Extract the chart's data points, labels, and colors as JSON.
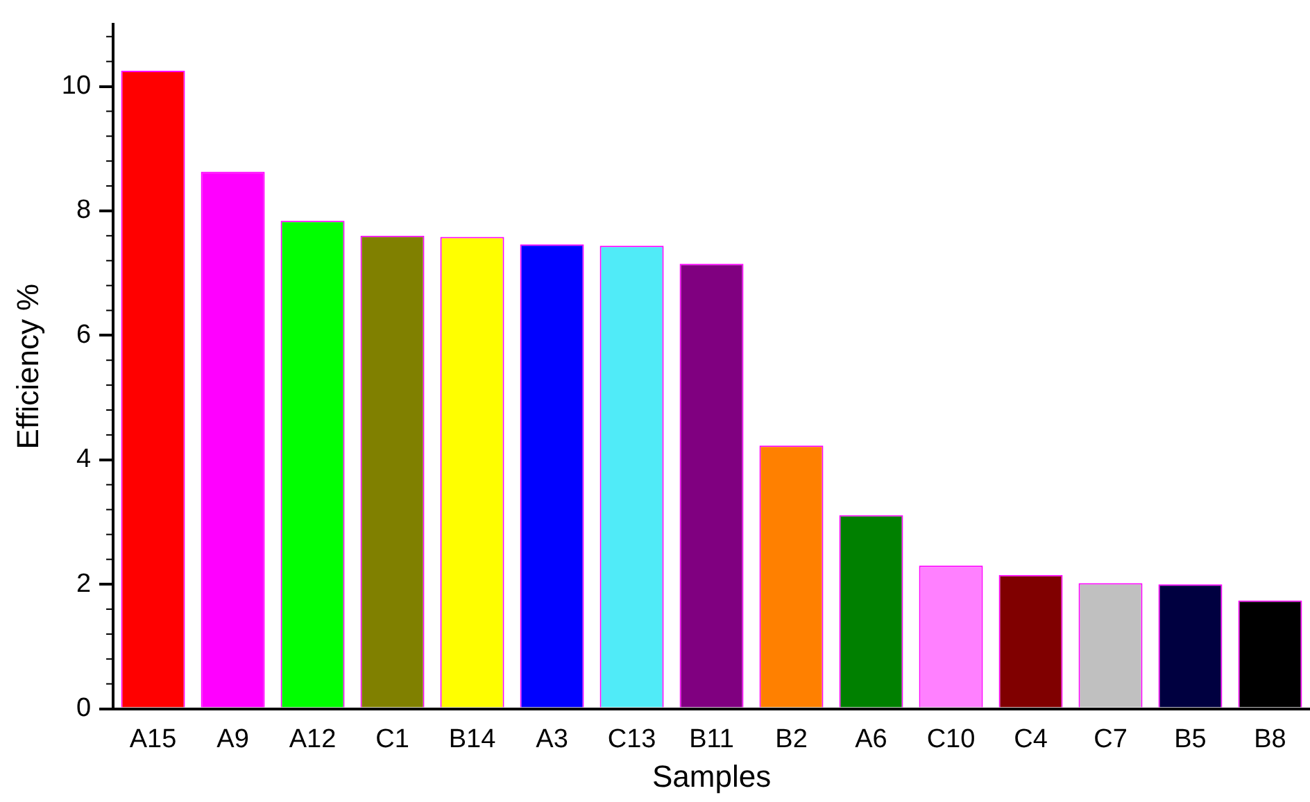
{
  "chart_data": {
    "type": "bar",
    "xlabel": "Samples",
    "ylabel": "Efficiency %",
    "categories": [
      "A15",
      "A9",
      "A12",
      "C1",
      "B14",
      "A3",
      "C13",
      "B11",
      "B2",
      "A6",
      "C10",
      "C4",
      "C7",
      "B5",
      "B8"
    ],
    "values": [
      10.25,
      8.63,
      7.84,
      7.6,
      7.58,
      7.46,
      7.44,
      7.15,
      4.23,
      3.11,
      2.3,
      2.15,
      2.02,
      2.0,
      1.74
    ],
    "colors": [
      "#ff0000",
      "#ff00ff",
      "#00ff00",
      "#808000",
      "#ffff00",
      "#0000ff",
      "#50ebf8",
      "#800080",
      "#ff8000",
      "#008000",
      "#ff80ff",
      "#800000",
      "#c0c0c0",
      "#000040",
      "#000000"
    ],
    "ylim": [
      0,
      11
    ],
    "yticks": [
      0,
      2,
      4,
      6,
      8,
      10
    ],
    "grid": false
  }
}
